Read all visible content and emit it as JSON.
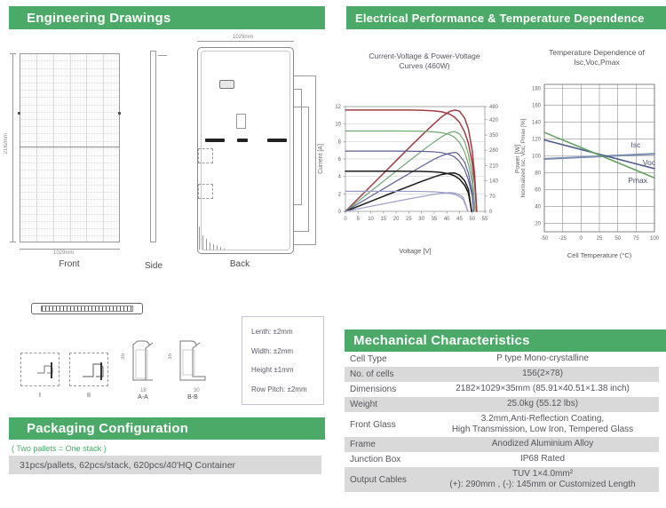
{
  "engineering": {
    "title": "Engineering Drawings",
    "front_label": "Front",
    "side_label": "Side",
    "back_label": "Back",
    "front_height_dim": "2182mm",
    "front_width_dim": "1029mm",
    "back_width_dim": "1029mm",
    "section_labels": {
      "one": "I",
      "two": "II",
      "aa": "A-A",
      "bb": "B-B"
    },
    "section_dims": {
      "aa_h": "35",
      "aa_w": "18",
      "bb_h": "35",
      "bb_w": "30"
    },
    "tolerances": [
      "Lenth: ±2mm",
      "Width: ±2mm",
      "Height ±1mm",
      "Row Pitch: ±2mm"
    ]
  },
  "electrical": {
    "title": "Electrical Performance & Temperature Dependence",
    "chart1_title_line1": "Current-Voltage & Power-Voltage",
    "chart1_title_line2": "Curves (460W)",
    "chart2_title_line1": "Temperature Dependence of",
    "chart2_title_line2": "Isc,Voc,Pmax"
  },
  "mechanical": {
    "title": "Mechanical Characteristics",
    "rows": [
      {
        "label": "Cell Type",
        "value": "P type Mono-crystalline",
        "value2": ""
      },
      {
        "label": "No. of cells",
        "value": "156(2×78)",
        "value2": ""
      },
      {
        "label": "Dimensions",
        "value": "2182×1029×35mm (85.91×40.51×1.38 inch)",
        "value2": ""
      },
      {
        "label": "Weight",
        "value": "25.0kg (55.12 lbs)",
        "value2": ""
      },
      {
        "label": "Front Glass",
        "value": "3.2mm,Anti-Reflection Coating,",
        "value2": "High Transmission, Low Iron, Tempered Glass"
      },
      {
        "label": "Frame",
        "value": "Anodized Aluminium Alloy",
        "value2": ""
      },
      {
        "label": "Junction Box",
        "value": "IP68 Rated",
        "value2": ""
      },
      {
        "label": "Output Cables",
        "value": "TUV  1×4.0mm²",
        "value2": "(+): 290mm , (-): 145mm or Customized Length"
      }
    ]
  },
  "packaging": {
    "title": "Packaging Configuration",
    "note": "( Two pallets = One stack )",
    "detail": "31pcs/pallets, 62pcs/stack, 620pcs/40'HQ Container"
  },
  "colors": {
    "accent_green": "#4caa68",
    "row_gray": "#d9d9d9",
    "iv_red": "#a03c44",
    "iv_green": "#71a873",
    "iv_blue": "#5c5c94",
    "iv_black": "#1b1b1b",
    "iv_lavender": "#9a9ac8",
    "isc_line": "#7b8db0",
    "voc_line": "#4a5a8c",
    "pmax_line": "#63a15f"
  },
  "chart_data": [
    {
      "type": "line",
      "title": "Current-Voltage & Power-Voltage Curves (460W)",
      "xlabel": "Voltage [V]",
      "ylabel_left": "Current [A]",
      "ylabel_right": "Power [W]",
      "xlim": [
        0,
        55
      ],
      "xtick_step": 5,
      "ylim_left": [
        0,
        12
      ],
      "ytick_step_left": 2,
      "ylim_right": [
        0,
        480
      ],
      "yticks_right": [
        0,
        70,
        140,
        210,
        280,
        350,
        420,
        480
      ],
      "grid": "horizontal",
      "legend_position": "none",
      "iv_series": [
        {
          "name": "iv-curve-1",
          "color": "#a03c44",
          "width": 1.5,
          "points": [
            [
              0,
              11.6
            ],
            [
              5,
              11.6
            ],
            [
              10,
              11.6
            ],
            [
              15,
              11.6
            ],
            [
              20,
              11.6
            ],
            [
              25,
              11.6
            ],
            [
              30,
              11.58
            ],
            [
              35,
              11.5
            ],
            [
              38,
              11.4
            ],
            [
              41,
              11.15
            ],
            [
              43,
              10.8
            ],
            [
              45,
              10.2
            ],
            [
              47,
              9.1
            ],
            [
              48.5,
              7.8
            ],
            [
              50,
              5.6
            ],
            [
              51,
              3.2
            ],
            [
              51.8,
              0
            ]
          ]
        },
        {
          "name": "iv-curve-2",
          "color": "#71a873",
          "width": 1.2,
          "points": [
            [
              0,
              9.2
            ],
            [
              10,
              9.2
            ],
            [
              20,
              9.2
            ],
            [
              30,
              9.18
            ],
            [
              35,
              9.1
            ],
            [
              38,
              9.0
            ],
            [
              41,
              8.8
            ],
            [
              43,
              8.5
            ],
            [
              45,
              7.9
            ],
            [
              47,
              6.8
            ],
            [
              48.5,
              5.4
            ],
            [
              50,
              3.4
            ],
            [
              51.2,
              0
            ]
          ]
        },
        {
          "name": "iv-curve-3",
          "color": "#5c5c94",
          "width": 1.2,
          "points": [
            [
              0,
              6.9
            ],
            [
              10,
              6.9
            ],
            [
              20,
              6.9
            ],
            [
              30,
              6.88
            ],
            [
              35,
              6.82
            ],
            [
              38,
              6.72
            ],
            [
              41,
              6.5
            ],
            [
              43,
              6.25
            ],
            [
              45,
              5.7
            ],
            [
              47,
              4.8
            ],
            [
              48.5,
              3.6
            ],
            [
              50,
              1.8
            ],
            [
              50.6,
              0
            ]
          ]
        },
        {
          "name": "iv-curve-4",
          "color": "#1b1b1b",
          "width": 1.5,
          "points": [
            [
              0,
              4.6
            ],
            [
              10,
              4.6
            ],
            [
              20,
              4.6
            ],
            [
              30,
              4.58
            ],
            [
              35,
              4.52
            ],
            [
              38,
              4.45
            ],
            [
              41,
              4.28
            ],
            [
              43,
              4.08
            ],
            [
              45,
              3.7
            ],
            [
              47,
              3.0
            ],
            [
              48.5,
              2.1
            ],
            [
              49.8,
              0
            ]
          ]
        },
        {
          "name": "iv-curve-5",
          "color": "#9a9ac8",
          "width": 1.2,
          "points": [
            [
              0,
              2.3
            ],
            [
              10,
              2.3
            ],
            [
              20,
              2.3
            ],
            [
              30,
              2.28
            ],
            [
              35,
              2.24
            ],
            [
              38,
              2.18
            ],
            [
              41,
              2.08
            ],
            [
              43,
              1.95
            ],
            [
              45,
              1.7
            ],
            [
              46.5,
              1.35
            ],
            [
              48.3,
              0
            ]
          ]
        }
      ],
      "pv_series": [
        {
          "name": "pv-curve-1",
          "color": "#a03c44",
          "width": 1.5,
          "points": [
            [
              0,
              0
            ],
            [
              5,
              58
            ],
            [
              10,
              116
            ],
            [
              15,
              174
            ],
            [
              20,
              232
            ],
            [
              25,
              290
            ],
            [
              30,
              347
            ],
            [
              35,
              402
            ],
            [
              38,
              433
            ],
            [
              41,
              457
            ],
            [
              43,
              464
            ],
            [
              44,
              462
            ],
            [
              45,
              459
            ],
            [
              47,
              428
            ],
            [
              48.5,
              378
            ],
            [
              50,
              280
            ],
            [
              51,
              163
            ],
            [
              51.8,
              0
            ]
          ]
        },
        {
          "name": "pv-curve-2",
          "color": "#71a873",
          "width": 1.2,
          "points": [
            [
              0,
              0
            ],
            [
              10,
              92
            ],
            [
              20,
              184
            ],
            [
              30,
              275
            ],
            [
              35,
              318
            ],
            [
              38,
              342
            ],
            [
              41,
              361
            ],
            [
              43,
              366
            ],
            [
              45,
              355
            ],
            [
              47,
              320
            ],
            [
              48.5,
              262
            ],
            [
              50,
              170
            ],
            [
              51.2,
              0
            ]
          ]
        },
        {
          "name": "pv-curve-3",
          "color": "#5c5c94",
          "width": 1.2,
          "points": [
            [
              0,
              0
            ],
            [
              10,
              69
            ],
            [
              20,
              138
            ],
            [
              30,
              206
            ],
            [
              35,
              239
            ],
            [
              38,
              255
            ],
            [
              41,
              266
            ],
            [
              43,
              270
            ],
            [
              44,
              268
            ],
            [
              45,
              256
            ],
            [
              47,
              226
            ],
            [
              48.5,
              175
            ],
            [
              50,
              90
            ],
            [
              50.6,
              0
            ]
          ]
        },
        {
          "name": "pv-curve-4",
          "color": "#1b1b1b",
          "width": 1.5,
          "points": [
            [
              0,
              0
            ],
            [
              10,
              46
            ],
            [
              20,
              92
            ],
            [
              30,
              137
            ],
            [
              35,
              158
            ],
            [
              38,
              169
            ],
            [
              41,
              175
            ],
            [
              43,
              176
            ],
            [
              45,
              166
            ],
            [
              47,
              141
            ],
            [
              48.5,
              102
            ],
            [
              49.8,
              0
            ]
          ]
        },
        {
          "name": "pv-curve-5",
          "color": "#9a9ac8",
          "width": 1.2,
          "points": [
            [
              0,
              0
            ],
            [
              10,
              23
            ],
            [
              20,
              46
            ],
            [
              30,
              68
            ],
            [
              35,
              78
            ],
            [
              38,
              83
            ],
            [
              41,
              86
            ],
            [
              43,
              84
            ],
            [
              45,
              76
            ],
            [
              46.5,
              63
            ],
            [
              48.3,
              0
            ]
          ]
        }
      ]
    },
    {
      "type": "line",
      "title": "Temperature Dependence of Isc,Voc,Pmax",
      "xlabel": "Cell Temperature (°C)",
      "ylabel": "Normalized Isc, Voc, Pmax [%]",
      "xlim": [
        -50,
        100
      ],
      "xtick_step": 25,
      "ylim": [
        10,
        185
      ],
      "yticks": [
        20,
        40,
        60,
        80,
        100,
        120,
        140,
        160,
        180
      ],
      "grid": "both",
      "legend_position": "inline-right",
      "series": [
        {
          "name": "Isc",
          "color": "#7b8db0",
          "width": 2.2,
          "points": [
            [
              -50,
              96.5
            ],
            [
              100,
              102.5
            ]
          ]
        },
        {
          "name": "Voc",
          "color": "#4a5a8c",
          "width": 1.6,
          "points": [
            [
              -50,
              119
            ],
            [
              100,
              85
            ]
          ]
        },
        {
          "name": "Pmax",
          "color": "#63a15f",
          "width": 1.6,
          "points": [
            [
              -50,
              128
            ],
            [
              100,
              74
            ]
          ]
        }
      ],
      "labels": [
        {
          "text": "Isc",
          "x": 68,
          "y": 110
        },
        {
          "text": "Voc",
          "x": 84,
          "y": 89
        },
        {
          "text": "Pmax",
          "x": 64,
          "y": 68
        }
      ]
    }
  ]
}
